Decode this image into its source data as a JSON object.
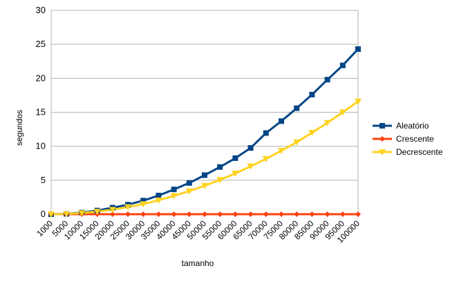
{
  "chart_data": {
    "type": "line",
    "xlabel": "tamanho",
    "ylabel": "segundos",
    "ylim": [
      0,
      30
    ],
    "yticks": [
      "0",
      "5",
      "10",
      "15",
      "20",
      "25",
      "30"
    ],
    "grid": "horizontal major gridlines",
    "legend_position": "right",
    "categories": [
      "1000",
      "5000",
      "10000",
      "15000",
      "20000",
      "25000",
      "30000",
      "35000",
      "40000",
      "45000",
      "50000",
      "55000",
      "60000",
      "65000",
      "70000",
      "75000",
      "80000",
      "85000",
      "90000",
      "95000",
      "100000"
    ],
    "series": [
      {
        "name": "Aleatório",
        "color": "#004586",
        "marker": "square",
        "values": [
          0.0,
          0.06,
          0.24,
          0.54,
          0.96,
          1.4,
          2.0,
          2.75,
          3.65,
          4.6,
          5.75,
          6.95,
          8.25,
          9.75,
          11.95,
          13.7,
          15.6,
          17.6,
          19.8,
          21.9,
          24.3
        ]
      },
      {
        "name": "Crescente",
        "color": "#ff420e",
        "marker": "diamond",
        "values": [
          0,
          0,
          0,
          0,
          0,
          0,
          0,
          0,
          0,
          0,
          0,
          0,
          0,
          0,
          0,
          0,
          0,
          0,
          0,
          0,
          0
        ]
      },
      {
        "name": "Decrescente",
        "color": "#ffd320",
        "marker": "triangle-down",
        "values": [
          0.0,
          0.04,
          0.17,
          0.38,
          0.66,
          1.05,
          1.5,
          2.05,
          2.7,
          3.4,
          4.2,
          5.05,
          6.0,
          7.05,
          8.15,
          9.35,
          10.6,
          12.0,
          13.45,
          15.0,
          16.6
        ]
      }
    ]
  }
}
